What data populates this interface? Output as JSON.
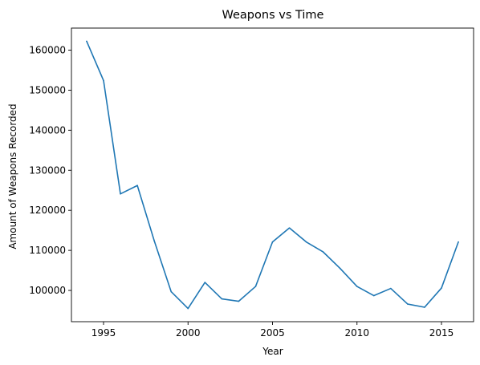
{
  "chart_data": {
    "type": "line",
    "title": "Weapons vs Time",
    "xlabel": "Year",
    "ylabel": "Amount of Weapons Recorded",
    "xlim": [
      1993.1,
      2016.9
    ],
    "ylim": [
      92200,
      165500
    ],
    "xticks": [
      1995,
      2000,
      2005,
      2010,
      2015
    ],
    "yticks": [
      100000,
      110000,
      120000,
      130000,
      140000,
      150000,
      160000
    ],
    "grid": false,
    "line_color": "#1f77b4",
    "series": [
      {
        "x": [
          1994,
          1995,
          1996,
          1997,
          1998,
          1999,
          2000,
          2001,
          2002,
          2003,
          2004,
          2005,
          2006,
          2007,
          2008,
          2009,
          2010,
          2011,
          2012,
          2013,
          2014,
          2015,
          2016
        ],
        "values": [
          162200,
          152400,
          124100,
          126200,
          112400,
          99700,
          95500,
          102000,
          97900,
          97300,
          101000,
          112100,
          115600,
          112100,
          109600,
          105500,
          101000,
          98700,
          100500,
          96600,
          95800,
          100600,
          112100
        ]
      }
    ]
  }
}
